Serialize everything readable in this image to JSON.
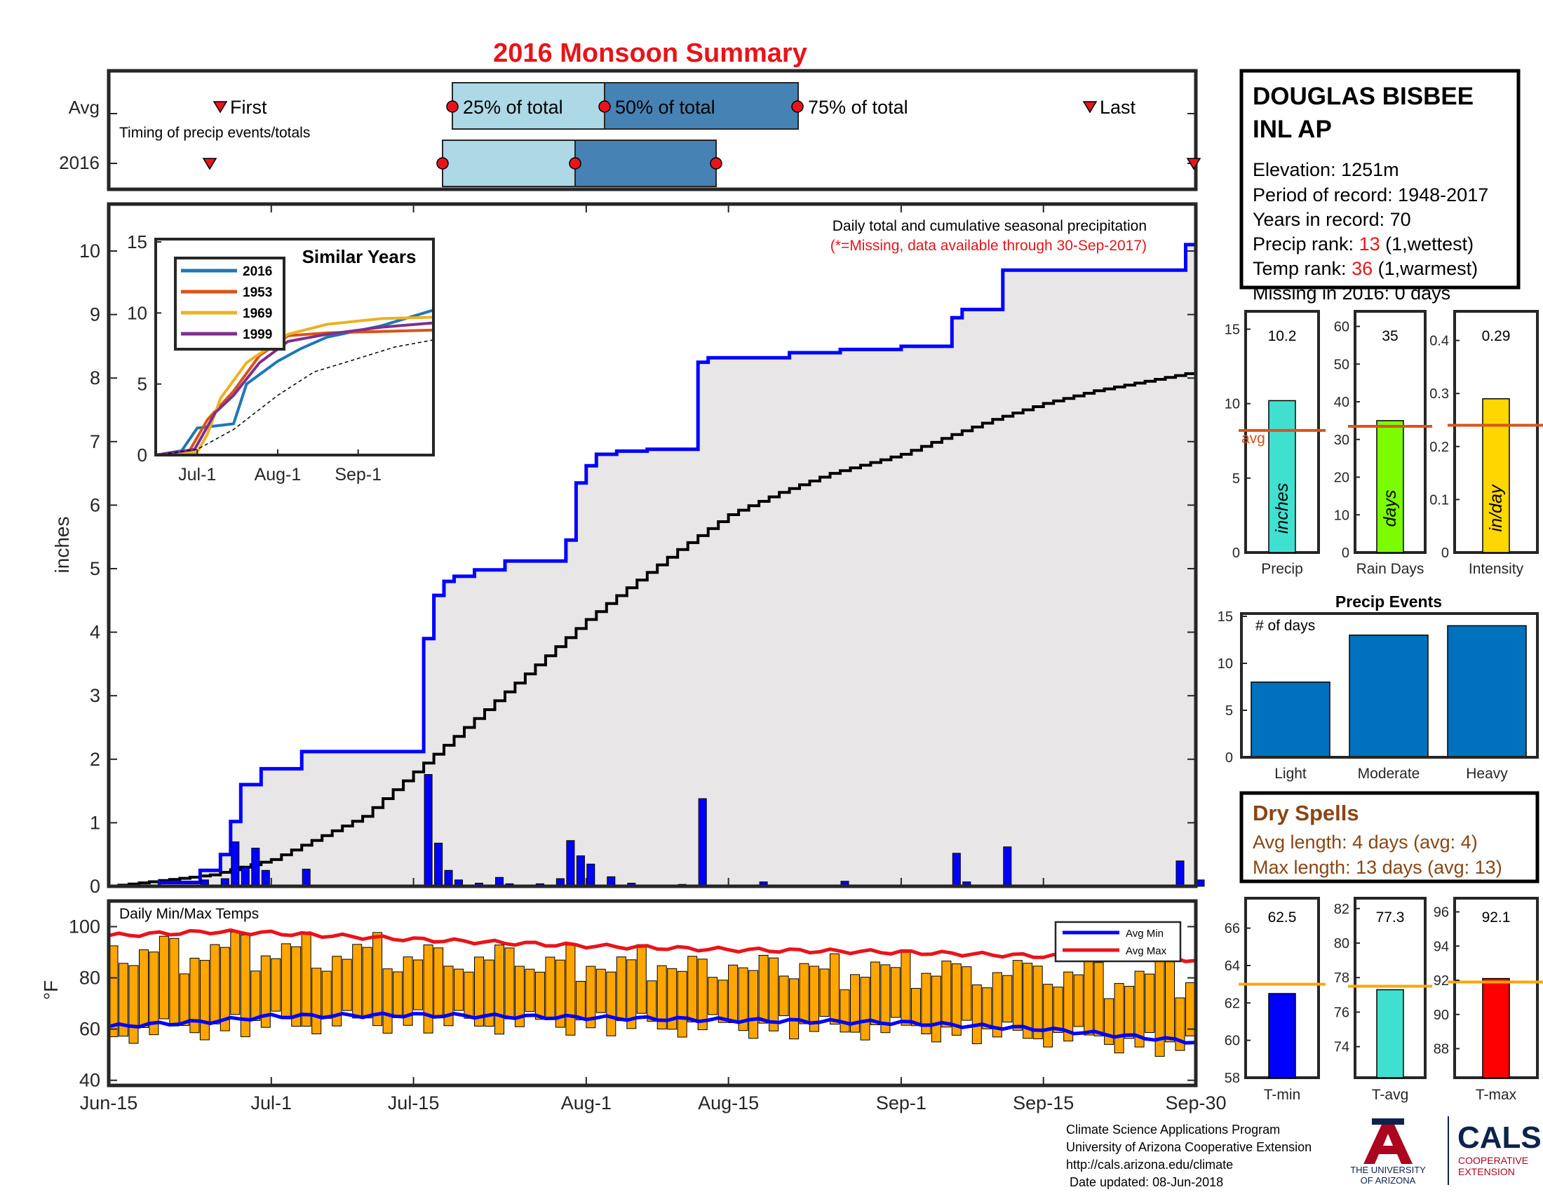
{
  "title": "2016 Monsoon Summary",
  "timing": {
    "row_labels": [
      "Avg",
      "2016"
    ],
    "caption": "Timing of precip events/totals",
    "avg_labels": {
      "first": "First",
      "p25": "25% of total",
      "p50": "50% of total",
      "p75": "75% of total",
      "last": "Last"
    },
    "avg": {
      "first": "Jun-24",
      "p25": "Jul-17",
      "p50": "Aug-1",
      "p75": "Aug-21",
      "last": "Sep-22"
    },
    "y2016": {
      "first": "Jun-23",
      "p25": "Jul-16",
      "p50": "Jul-29",
      "p75": "Aug-13",
      "last": "Sep-30"
    }
  },
  "station": {
    "name_line1": "DOUGLAS BISBEE",
    "name_line2": "INL AP",
    "elevation": "Elevation: 1251m",
    "period": "Period of record: 1948-2017",
    "years": "Years in record: 70",
    "precip_rank_label": "Precip rank: ",
    "precip_rank_value": "13",
    "precip_rank_note": " (1,wettest)",
    "temp_rank_label": "Temp rank: ",
    "temp_rank_value": "36",
    "temp_rank_note": " (1,warmest)",
    "missing": "Missing in 2016: 0 days"
  },
  "main_chart": {
    "note1": "Daily total and cumulative seasonal precipitation",
    "note2": "(*=Missing, data available through 30-Sep-2017)",
    "ylabel": "inches",
    "x_ticks": [
      "Jun-15",
      "Jul-1",
      "Jul-15",
      "Aug-1",
      "Aug-15",
      "Sep-1",
      "Sep-15",
      "Sep-30"
    ]
  },
  "inset": {
    "title": "Similar Years",
    "legend": [
      "2016",
      "1953",
      "1969",
      "1999"
    ],
    "colors": [
      "#1f77b4",
      "#d95319",
      "#edb120",
      "#7e2f8e"
    ],
    "x_ticks": [
      "Jul-1",
      "Aug-1",
      "Sep-1"
    ]
  },
  "temps": {
    "label": "Daily Min/Max Temps",
    "ylabel": "°F",
    "legend": [
      "Avg Min",
      "Avg Max"
    ]
  },
  "mini_bars": {
    "precip": {
      "label": "Precip",
      "value_text": "10.2",
      "unit": "inches",
      "value": 10.2,
      "avg": 8.2
    },
    "raindays": {
      "label": "Rain Days",
      "value_text": "35",
      "unit": "days",
      "value": 35,
      "avg": 33.5
    },
    "intensity": {
      "label": "Intensity",
      "value_text": "0.29",
      "unit": "in/day",
      "value": 0.29,
      "avg": 0.24
    },
    "avg_text": "avg"
  },
  "events": {
    "title": "Precip Events",
    "ylabel_text": "# of days",
    "categories": [
      "Light",
      "Moderate",
      "Heavy"
    ],
    "values": [
      8,
      13,
      14
    ]
  },
  "dry_spells": {
    "title": "Dry Spells",
    "avg_line": "Avg length: 4 days (avg: 4)",
    "max_line": "Max length: 13 days (avg: 13)"
  },
  "temp_bars": {
    "tmin": {
      "label": "T-min",
      "value_text": "62.5",
      "value": 62.5,
      "avg": 63.0
    },
    "tavg": {
      "label": "T-avg",
      "value_text": "77.3",
      "value": 77.3,
      "avg": 77.5
    },
    "tmax": {
      "label": "T-max",
      "value_text": "92.1",
      "value": 92.1,
      "avg": 91.9
    }
  },
  "footer": {
    "lines": [
      "Climate Science Applications Program",
      "University of Arizona Cooperative Extension",
      "http://cals.arizona.edu/climate",
      " Date updated: 08-Jun-2018"
    ],
    "ua_logo": [
      "THE UNIVERSITY",
      "OF ARIZONA"
    ],
    "cals_logo": [
      "CALS",
      "COOPERATIVE",
      "EXTENSION"
    ]
  },
  "chart_data": [
    {
      "type": "area",
      "title": "Daily total and cumulative seasonal precipitation",
      "ylabel": "inches",
      "ylim": [
        0,
        10.8
      ],
      "xlim": [
        "Jun-15",
        "Sep-30"
      ],
      "series": [
        {
          "name": "2016",
          "x": [
            "Jun-15",
            "Jun-20",
            "Jun-24",
            "Jun-26",
            "Jun-27",
            "Jun-28",
            "Jun-30",
            "Jul-4",
            "Jul-16",
            "Jul-17",
            "Jul-18",
            "Jul-19",
            "Jul-21",
            "Jul-24",
            "Jul-30",
            "Jul-31",
            "Aug-1",
            "Aug-2",
            "Aug-4",
            "Aug-7",
            "Aug-12",
            "Aug-13",
            "Aug-21",
            "Aug-26",
            "Sep-1",
            "Sep-6",
            "Sep-7",
            "Sep-11",
            "Sep-29",
            "Sep-30"
          ],
          "values": [
            0,
            0.06,
            0.25,
            0.5,
            1.02,
            1.6,
            1.85,
            2.12,
            3.9,
            4.58,
            4.8,
            4.88,
            4.98,
            5.12,
            5.45,
            6.35,
            6.62,
            6.8,
            6.85,
            6.88,
            8.25,
            8.32,
            8.4,
            8.45,
            8.5,
            8.95,
            9.08,
            9.7,
            10.1,
            10.2
          ]
        },
        {
          "name": "Average",
          "x": [
            "Jun-15",
            "Jun-25",
            "Jul-1",
            "Jul-10",
            "Jul-15",
            "Jul-20",
            "Jul-25",
            "Aug-1",
            "Aug-5",
            "Aug-10",
            "Aug-15",
            "Aug-20",
            "Aug-25",
            "Sep-1",
            "Sep-5",
            "Sep-10",
            "Sep-15",
            "Sep-20",
            "Sep-25",
            "Sep-30"
          ],
          "values": [
            0,
            0.18,
            0.42,
            1.1,
            1.8,
            2.5,
            3.2,
            4.2,
            4.7,
            5.3,
            5.85,
            6.2,
            6.5,
            6.8,
            7.05,
            7.35,
            7.6,
            7.8,
            7.95,
            8.1
          ]
        }
      ]
    },
    {
      "type": "bar",
      "title": "Daily precipitation",
      "categories": [
        "Jun-24",
        "Jun-26",
        "Jun-27",
        "Jun-28",
        "Jun-29",
        "Jun-30",
        "Jul-4",
        "Jul-16",
        "Jul-17",
        "Jul-18",
        "Jul-19",
        "Jul-21",
        "Jul-23",
        "Jul-24",
        "Jul-27",
        "Jul-29",
        "Jul-30",
        "Jul-31",
        "Aug-1",
        "Aug-3",
        "Aug-5",
        "Aug-10",
        "Aug-12",
        "Aug-18",
        "Aug-26",
        "Sep-6",
        "Sep-7",
        "Sep-11",
        "Sep-28",
        "Sep-30"
      ],
      "values": [
        0.1,
        0.12,
        0.7,
        0.3,
        0.6,
        0.25,
        0.27,
        1.76,
        0.68,
        0.25,
        0.1,
        0.05,
        0.14,
        0.04,
        0.04,
        0.12,
        0.72,
        0.48,
        0.35,
        0.15,
        0.05,
        0.03,
        1.38,
        0.07,
        0.08,
        0.52,
        0.07,
        0.62,
        0.4,
        0.1
      ]
    },
    {
      "type": "line",
      "title": "Similar Years",
      "xlim": [
        "Jun-15",
        "Sep-30"
      ],
      "ylim": [
        0,
        15
      ],
      "series": [
        {
          "name": "2016",
          "x": [
            "Jun-15",
            "Jun-25",
            "Jul-1",
            "Jul-15",
            "Jul-20",
            "Aug-1",
            "Aug-10",
            "Aug-20",
            "Sep-10",
            "Sep-30"
          ],
          "values": [
            0,
            0.3,
            1.9,
            2.2,
            5.0,
            6.6,
            7.5,
            8.3,
            9.1,
            10.2
          ]
        },
        {
          "name": "1953",
          "x": [
            "Jun-15",
            "Jun-28",
            "Jul-5",
            "Jul-15",
            "Jul-25",
            "Aug-5",
            "Aug-20",
            "Sep-10",
            "Sep-30"
          ],
          "values": [
            0,
            0.3,
            2.5,
            4.5,
            7.0,
            8.4,
            8.6,
            8.7,
            8.8
          ]
        },
        {
          "name": "1969",
          "x": [
            "Jun-15",
            "Jul-1",
            "Jul-5",
            "Jul-10",
            "Jul-20",
            "Aug-5",
            "Aug-20",
            "Sep-10",
            "Sep-30"
          ],
          "values": [
            0,
            0.2,
            1.5,
            4.0,
            6.5,
            8.5,
            9.2,
            9.6,
            9.7
          ]
        },
        {
          "name": "1999",
          "x": [
            "Jun-15",
            "Jun-30",
            "Jul-8",
            "Jul-15",
            "Jul-25",
            "Aug-5",
            "Aug-20",
            "Sep-10",
            "Sep-30"
          ],
          "values": [
            0,
            0.4,
            3.0,
            4.2,
            6.5,
            8.0,
            8.5,
            9.0,
            9.3
          ]
        },
        {
          "name": "Average",
          "x": [
            "Jun-15",
            "Jul-1",
            "Jul-15",
            "Aug-1",
            "Aug-15",
            "Sep-1",
            "Sep-15",
            "Sep-30"
          ],
          "values": [
            0,
            0.4,
            1.8,
            4.2,
            5.85,
            6.8,
            7.6,
            8.1
          ]
        }
      ]
    },
    {
      "type": "bar",
      "title": "Daily Min/Max Temps",
      "ylabel": "°F",
      "ylim": [
        38,
        110
      ],
      "series": [
        {
          "name": "Avg Min",
          "x": [
            "Jun-15",
            "Jun-25",
            "Jul-1",
            "Jul-15",
            "Aug-1",
            "Aug-15",
            "Sep-1",
            "Sep-15",
            "Sep-30"
          ],
          "values": [
            61,
            63,
            65,
            65.5,
            64.5,
            63.5,
            62.5,
            60,
            55
          ]
        },
        {
          "name": "Avg Max",
          "x": [
            "Jun-15",
            "Jun-25",
            "Jul-1",
            "Jul-15",
            "Aug-1",
            "Aug-15",
            "Sep-1",
            "Sep-15",
            "Sep-30"
          ],
          "values": [
            96.5,
            98,
            97.5,
            95,
            92.5,
            91,
            90,
            88.5,
            87
          ]
        }
      ]
    },
    {
      "type": "bar",
      "title": "Precip Events",
      "categories": [
        "Light",
        "Moderate",
        "Heavy"
      ],
      "values": [
        8,
        13,
        14
      ],
      "ylim": [
        0,
        15
      ]
    }
  ]
}
